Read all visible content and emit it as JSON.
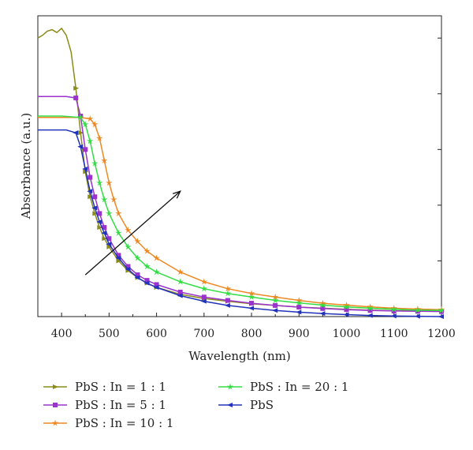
{
  "chart_data": {
    "type": "line",
    "xlabel": "Wavelength (nm)",
    "ylabel": "Absorbance (a.u.)",
    "xlim": [
      350,
      1200
    ],
    "ylim": [
      0,
      1.08
    ],
    "x_ticks": [
      400,
      500,
      600,
      700,
      800,
      900,
      1000,
      1100,
      1200
    ],
    "y_tick_labels_shown": false,
    "grid": false,
    "legend_position": "below",
    "annotation": "arrow indicating increasing direction",
    "series": [
      {
        "name": "PbS : In = 1 : 1",
        "color": "#8B8B1A",
        "marker": "triangle-right",
        "x": [
          350,
          360,
          370,
          380,
          390,
          400,
          410,
          420,
          430,
          440,
          450,
          460,
          470,
          480,
          490,
          500,
          520,
          540,
          560,
          580,
          600,
          650,
          700,
          750,
          800,
          850,
          900,
          950,
          1000,
          1050,
          1100,
          1150,
          1200
        ],
        "y": [
          1.0,
          1.01,
          1.025,
          1.03,
          1.02,
          1.035,
          1.01,
          0.95,
          0.82,
          0.66,
          0.52,
          0.43,
          0.37,
          0.32,
          0.28,
          0.25,
          0.2,
          0.165,
          0.14,
          0.12,
          0.105,
          0.08,
          0.065,
          0.055,
          0.046,
          0.04,
          0.034,
          0.03,
          0.026,
          0.023,
          0.021,
          0.02,
          0.02
        ]
      },
      {
        "name": "PbS : In = 5 : 1",
        "color": "#9933CC",
        "marker": "square",
        "x": [
          350,
          380,
          410,
          430,
          440,
          450,
          460,
          470,
          480,
          490,
          500,
          520,
          540,
          560,
          580,
          600,
          650,
          700,
          750,
          800,
          850,
          900,
          950,
          1000,
          1050,
          1100,
          1150,
          1200
        ],
        "y": [
          0.79,
          0.79,
          0.79,
          0.785,
          0.72,
          0.6,
          0.5,
          0.43,
          0.37,
          0.32,
          0.28,
          0.22,
          0.18,
          0.15,
          0.13,
          0.115,
          0.088,
          0.07,
          0.058,
          0.048,
          0.04,
          0.034,
          0.029,
          0.025,
          0.022,
          0.02,
          0.019,
          0.018
        ]
      },
      {
        "name": "PbS : In = 10 : 1",
        "color": "#EE8822",
        "marker": "star",
        "x": [
          350,
          400,
          440,
          460,
          470,
          480,
          490,
          500,
          510,
          520,
          540,
          560,
          580,
          600,
          650,
          700,
          750,
          800,
          850,
          900,
          950,
          1000,
          1050,
          1100,
          1150,
          1200
        ],
        "y": [
          0.715,
          0.715,
          0.715,
          0.71,
          0.69,
          0.64,
          0.56,
          0.48,
          0.42,
          0.37,
          0.31,
          0.27,
          0.235,
          0.21,
          0.16,
          0.125,
          0.1,
          0.083,
          0.07,
          0.058,
          0.048,
          0.041,
          0.035,
          0.03,
          0.027,
          0.025
        ]
      },
      {
        "name": "PbS : In = 20 : 1",
        "color": "#33DD44",
        "marker": "star",
        "x": [
          350,
          400,
          440,
          450,
          460,
          470,
          480,
          490,
          500,
          520,
          540,
          560,
          580,
          600,
          650,
          700,
          750,
          800,
          850,
          900,
          950,
          1000,
          1050,
          1100,
          1150,
          1200
        ],
        "y": [
          0.72,
          0.72,
          0.715,
          0.69,
          0.63,
          0.55,
          0.48,
          0.42,
          0.37,
          0.3,
          0.25,
          0.21,
          0.18,
          0.16,
          0.125,
          0.1,
          0.083,
          0.07,
          0.058,
          0.049,
          0.041,
          0.035,
          0.03,
          0.026,
          0.023,
          0.022
        ]
      },
      {
        "name": "PbS",
        "color": "#2233BB",
        "marker": "triangle-left",
        "x": [
          350,
          380,
          410,
          430,
          440,
          450,
          460,
          470,
          480,
          490,
          500,
          520,
          540,
          560,
          580,
          600,
          650,
          700,
          750,
          800,
          850,
          900,
          950,
          1000,
          1050,
          1100,
          1150,
          1200
        ],
        "y": [
          0.67,
          0.67,
          0.67,
          0.66,
          0.61,
          0.53,
          0.45,
          0.39,
          0.34,
          0.3,
          0.26,
          0.21,
          0.17,
          0.14,
          0.12,
          0.105,
          0.075,
          0.055,
          0.04,
          0.03,
          0.022,
          0.016,
          0.011,
          0.007,
          0.004,
          0.002,
          0.001,
          0.0
        ]
      }
    ]
  }
}
